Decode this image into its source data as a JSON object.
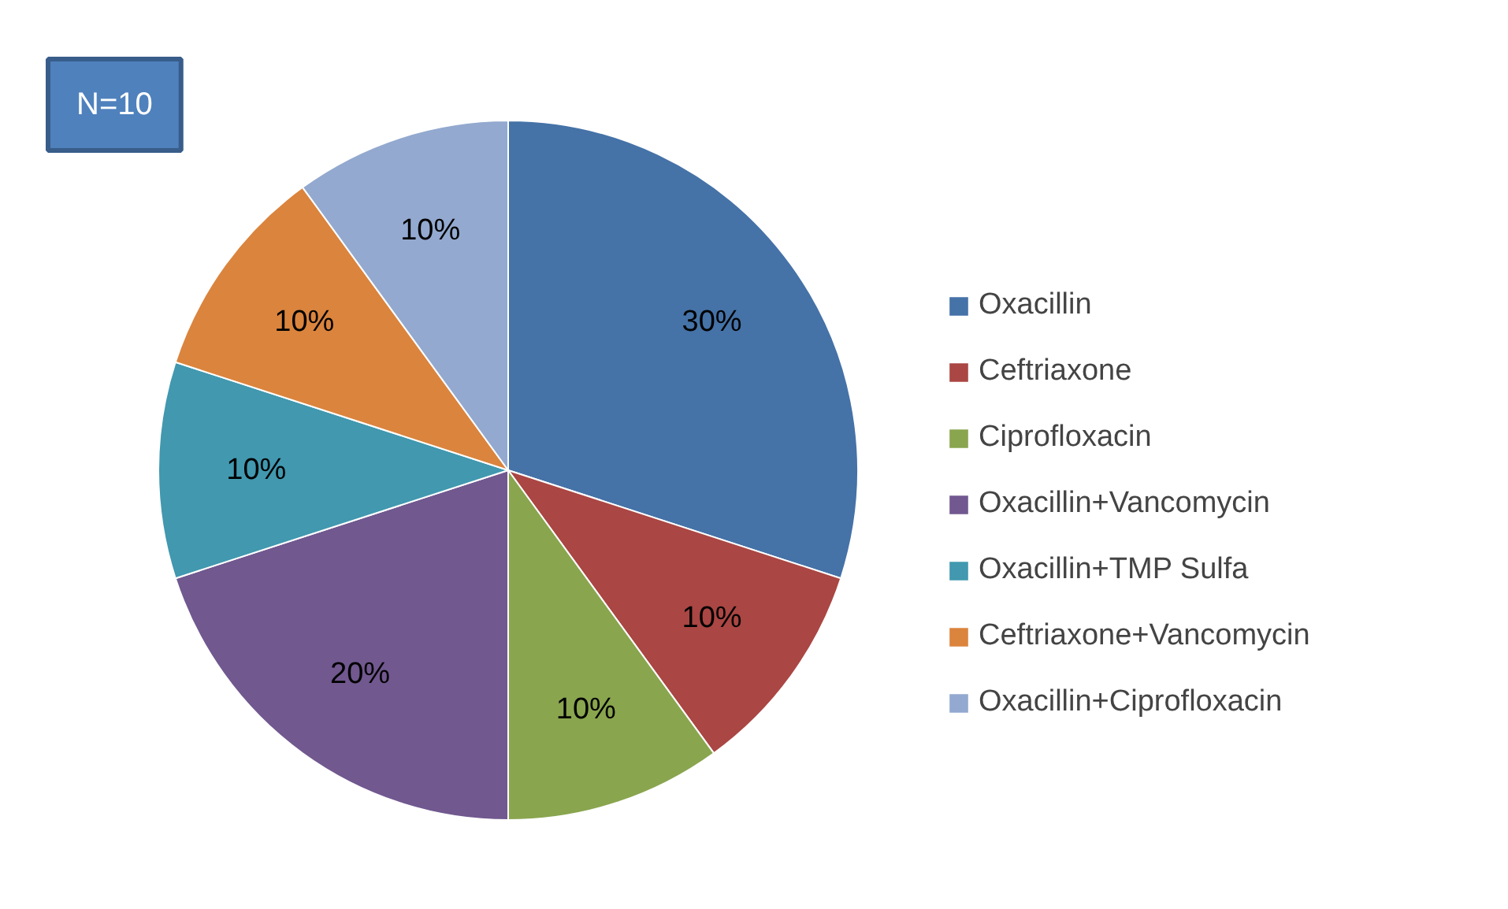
{
  "chart_data": {
    "type": "pie",
    "categories": [
      "Oxacillin",
      "Ceftriaxone",
      "Ciprofloxacin",
      "Oxacillin+Vancomycin",
      "Oxacillin+TMP Sulfa",
      "Ceftriaxone+Vancomycin",
      "Oxacillin+Ciprofloxacin"
    ],
    "values": [
      30,
      10,
      10,
      20,
      10,
      10,
      10
    ],
    "colors": [
      "#4572a7",
      "#aa4643",
      "#89a54e",
      "#71588f",
      "#4198af",
      "#db843d",
      "#93a9cf"
    ],
    "value_labels": [
      "30%",
      "10%",
      "10%",
      "20%",
      "10%",
      "10%",
      "10%"
    ],
    "annotations": [
      "N=10"
    ],
    "legend": "right"
  }
}
